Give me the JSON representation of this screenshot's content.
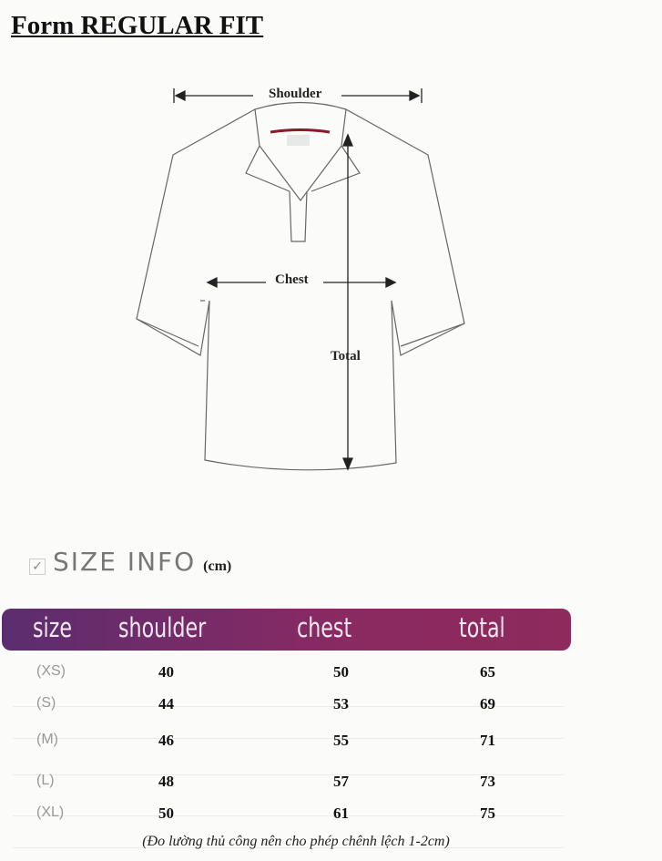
{
  "title": "Form REGULAR FIT",
  "diagram": {
    "shoulder": "Shoulder",
    "chest": "Chest",
    "total": "Total"
  },
  "size_info": {
    "label": "SIZE INFO",
    "unit": "(cm)"
  },
  "table": {
    "headers": [
      "size",
      "shoulder",
      "chest",
      "total"
    ],
    "rows": [
      [
        "(XS)",
        "40",
        "50",
        "65"
      ],
      [
        "(S)",
        "44",
        "53",
        "69"
      ],
      [
        "(M)",
        "46",
        "55",
        "71"
      ],
      [
        "(L)",
        "48",
        "57",
        "73"
      ],
      [
        "(XL)",
        "50",
        "61",
        "75"
      ]
    ]
  },
  "note": "(Đo lường thủ công nên cho phép chênh lệch 1-2cm)"
}
